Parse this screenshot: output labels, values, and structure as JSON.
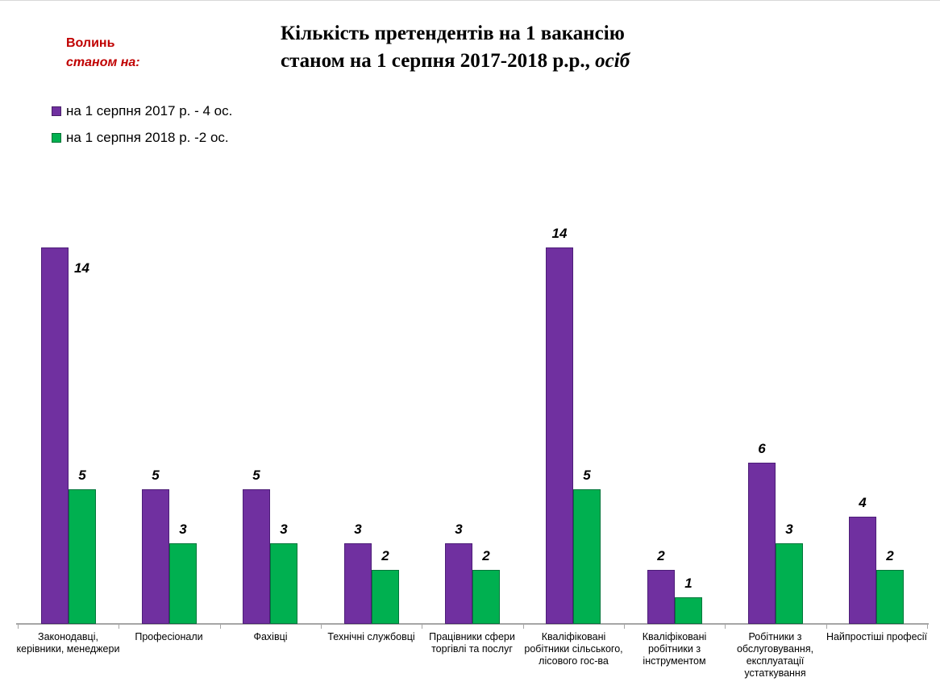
{
  "page": {
    "region": "Волинь",
    "region_sub": "станом на:",
    "region_color": "#c00000"
  },
  "title": {
    "line1": "Кількість претендентів на 1 вакансію",
    "line2_prefix": "станом на 1 серпня 2017-2018 р.р., ",
    "line2_italic": "осіб"
  },
  "legend": [
    {
      "label": "на 1 серпня 2017 р. - 4 ос.",
      "color": "#7030a0"
    },
    {
      "label": "на 1 серпня 2018 р. -2 ос.",
      "color": "#00b050"
    }
  ],
  "chart_data": {
    "type": "bar",
    "title": "Кількість претендентів на 1 вакансію станом на 1 серпня 2017-2018 р.р., осіб",
    "categories": [
      "Законодавці, керівники, менеджери",
      "Професіонали",
      "Фахівці",
      "Технічні службовці",
      "Працівники сфери торгівлі та послуг",
      "Кваліфіковані робітники сільського, лісового гос-ва",
      "Кваліфіковані робітники з інструментом",
      "Робітники з обслуговування, експлуатації устаткування",
      "Найпростіші професії"
    ],
    "series": [
      {
        "name": "на 1 серпня 2017 р. - 4 ос.",
        "color": "#7030a0",
        "border_color": "#4c1d77",
        "values": [
          14,
          5,
          5,
          3,
          3,
          14,
          2,
          6,
          4
        ]
      },
      {
        "name": "на 1 серпня 2018 р. -2 ос.",
        "color": "#00b050",
        "border_color": "#00763a",
        "values": [
          5,
          3,
          3,
          2,
          2,
          5,
          1,
          3,
          2
        ]
      }
    ],
    "ylim": [
      0,
      14
    ],
    "xlabel": "",
    "ylabel": "",
    "grid": false,
    "y_axis_visible": false,
    "value_labels": true,
    "value_label_beside": {
      "series": 0,
      "category": 0
    },
    "legend_position": "top-left",
    "axis_color": "#a6a6a6"
  }
}
